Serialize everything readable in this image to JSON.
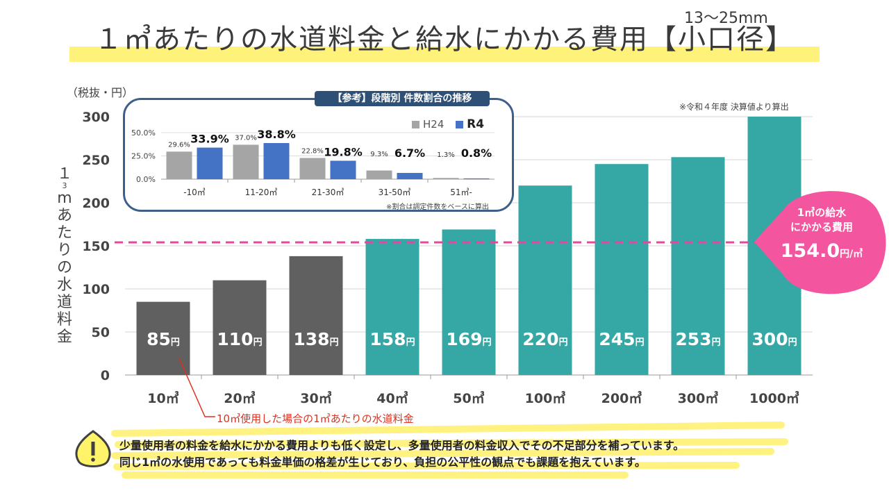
{
  "title": "１㎥あたりの水道料金と給水にかかる費用【小口径】",
  "subtitle": "13～25mm",
  "y_unit": "（税抜・円）",
  "y_axis_title": "１㎥あたりの水道料金",
  "source_note": "※令和４年度 決算値より算出",
  "inset": {
    "title": "【参考】段階別 件数割合の推移",
    "note": "※割合は調定件数をベースに算出",
    "legend": [
      "H24",
      "R4"
    ]
  },
  "callout": {
    "line1": "1㎥の給水",
    "line2": "にかかる費用",
    "value": "154.0",
    "unit": "円/㎥"
  },
  "annotation": "10㎥使用した場合の1㎥あたりの水道料金",
  "footer": {
    "line1": "少量使用者の料金を給水にかかる費用よりも低く設定し、多量使用者の料金収入でその不足部分を補っています。",
    "line2": "同じ1㎥の水使用であっても料金単価の格差が生じており、負担の公平性の観点でも課題を抱えています。"
  },
  "colors": {
    "gray_bar": "#606060",
    "teal_bar": "#35a7a5",
    "dash_line": "#e7479a",
    "callout": "#f3559f",
    "inset_h24": "#a5a5a5",
    "inset_r4": "#4472c4",
    "highlight": "#fff27a"
  },
  "chart_data": [
    {
      "type": "bar",
      "title": "１㎥あたりの水道料金と給水にかかる費用【小口径】",
      "ylabel": "１㎥あたりの水道料金",
      "categories": [
        "10㎥",
        "20㎥",
        "30㎥",
        "40㎥",
        "50㎥",
        "100㎥",
        "200㎥",
        "300㎥",
        "1000㎥"
      ],
      "values": [
        85,
        110,
        138,
        158,
        169,
        220,
        245,
        253,
        300
      ],
      "data_labels": [
        "85",
        "110",
        "138",
        "158",
        "169",
        "220",
        "245",
        "253",
        "300"
      ],
      "label_unit": "円",
      "bar_colors": [
        "gray",
        "gray",
        "gray",
        "teal",
        "teal",
        "teal",
        "teal",
        "teal",
        "teal"
      ],
      "ylim": [
        0,
        300
      ],
      "yticks": [
        0,
        50,
        100,
        150,
        200,
        250,
        300
      ],
      "reference_line": {
        "value": 154,
        "style": "dashed"
      },
      "grid": true
    },
    {
      "type": "bar",
      "title": "【参考】段階別 件数割合の推移",
      "categories": [
        "-10㎥",
        "11-20㎥",
        "21-30㎥",
        "31-50㎥",
        "51㎥-"
      ],
      "series": [
        {
          "name": "H24",
          "values": [
            29.6,
            37.0,
            22.8,
            9.3,
            1.3
          ],
          "labels": [
            "29.6%",
            "37.0%",
            "22.8%",
            "9.3%",
            "1.3%"
          ]
        },
        {
          "name": "R4",
          "values": [
            33.9,
            38.8,
            19.8,
            6.7,
            0.8
          ],
          "labels": [
            "33.9%",
            "38.8%",
            "19.8%",
            "6.7%",
            "0.8%"
          ]
        }
      ],
      "ylim": [
        0,
        50
      ],
      "yticks": [
        "0.0%",
        "25.0%",
        "50.0%"
      ],
      "legend": "top-right",
      "grid": true
    }
  ]
}
